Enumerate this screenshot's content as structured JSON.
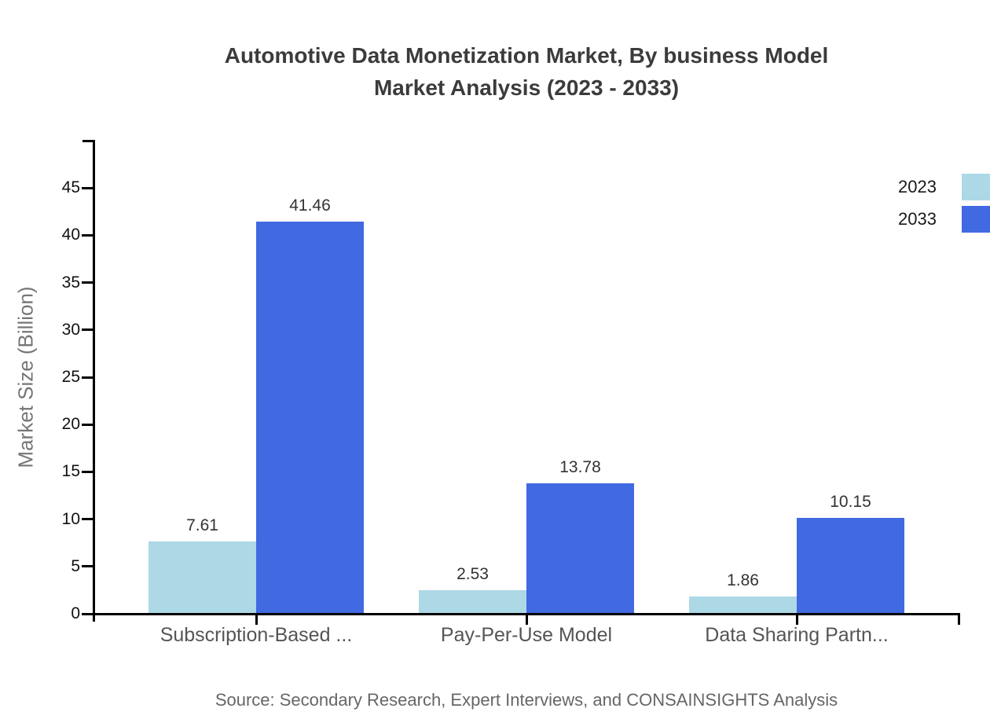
{
  "title": {
    "line1": "Automotive Data Monetization Market, By business Model",
    "line2": "Market Analysis (2023 - 2033)"
  },
  "source": "Source: Secondary Research, Expert Interviews, and CONSAINSIGHTS Analysis",
  "chart_data": {
    "type": "bar",
    "categories": [
      "Subscription-Based ...",
      "Pay-Per-Use Model",
      "Data Sharing Partn..."
    ],
    "series": [
      {
        "name": "2023",
        "color": "#ADD8E6",
        "values": [
          7.61,
          2.53,
          1.86
        ]
      },
      {
        "name": "2033",
        "color": "#4169E1",
        "values": [
          41.46,
          13.78,
          10.15
        ]
      }
    ],
    "title": "Automotive Data Monetization Market, By business Model Market Analysis (2023 - 2033)",
    "xlabel": "",
    "ylabel": "Market Size (Billion)",
    "ylim": [
      0,
      50
    ],
    "yticks": [
      0,
      5,
      10,
      15,
      20,
      25,
      30,
      35,
      40,
      45
    ],
    "grid": false,
    "legend_position": "top-right",
    "value_labels": true,
    "background": "#ffffff"
  },
  "colors": {
    "title_text": "#3b3b3b",
    "tick_text": "#111111",
    "category_text": "#555555",
    "value_text": "#333333",
    "ylabel_text": "#757575",
    "source_text": "#666666",
    "axis": "#000000"
  }
}
